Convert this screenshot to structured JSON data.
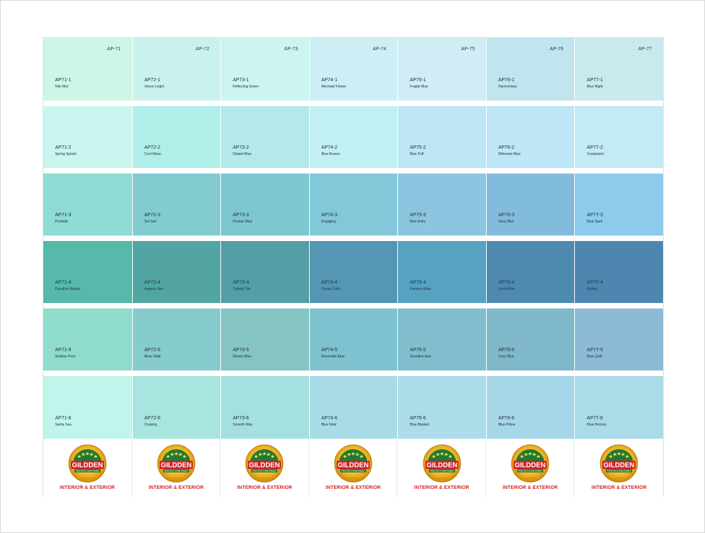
{
  "brand": {
    "logo_text": "GILDDEN",
    "logo_subtext": "PROTECTION PAINT",
    "tagline": "INTERIOR & EXTERIOR"
  },
  "columns": [
    {
      "header": "AP-71",
      "swatches": [
        {
          "code": "AP71-1",
          "name": "Nile Mist",
          "color": "#cdf6e6"
        },
        {
          "code": "AP71-2",
          "name": "Spring Splash",
          "color": "#c9f7f0"
        },
        {
          "code": "AP71-3",
          "name": "Poolside",
          "color": "#8edcd3"
        },
        {
          "code": "AP71-4",
          "name": "Paradise Waters",
          "color": "#56b9a9"
        },
        {
          "code": "AP71-5",
          "name": "Shallow Pool",
          "color": "#8fdccd"
        },
        {
          "code": "AP71-6",
          "name": "Sarba Sea",
          "color": "#bff5ea"
        }
      ]
    },
    {
      "header": "AP-72",
      "swatches": [
        {
          "code": "AP72-1",
          "name": "Venus Linght",
          "color": "#c9f2ee"
        },
        {
          "code": "AP72-2",
          "name": "Cool Wave",
          "color": "#b0efe9"
        },
        {
          "code": "AP72-3",
          "name": "Set Sail",
          "color": "#82ccd0"
        },
        {
          "code": "AP72-4",
          "name": "Aegean Sea",
          "color": "#52a5a2"
        },
        {
          "code": "AP72-5",
          "name": "River Walk",
          "color": "#86cccc"
        },
        {
          "code": "AP72-6",
          "name": "Cruising",
          "color": "#a8e4e0"
        }
      ]
    },
    {
      "header": "AP-73",
      "swatches": [
        {
          "code": "AP73-1",
          "name": "Reflecting Green",
          "color": "#ccf5ef"
        },
        {
          "code": "AP73-2",
          "name": "Distant Blue",
          "color": "#b3e9e8"
        },
        {
          "code": "AP73-3",
          "name": "Persian Blue",
          "color": "#7dc7cf"
        },
        {
          "code": "AP73-4",
          "name": "Turkish Tile",
          "color": "#549ea6"
        },
        {
          "code": "AP73-5",
          "name": "Woven Blue",
          "color": "#86c4c4"
        },
        {
          "code": "AP73-6",
          "name": "Smooth Way",
          "color": "#a5e0e0"
        }
      ]
    },
    {
      "header": "AP-74",
      "swatches": [
        {
          "code": "AP74-1",
          "name": "Mermaid Flower",
          "color": "#cdeef5"
        },
        {
          "code": "AP74-2",
          "name": "Blue Breeze",
          "color": "#c2f0f2"
        },
        {
          "code": "AP74-3",
          "name": "Engaging",
          "color": "#82c8d8"
        },
        {
          "code": "AP74-4",
          "name": "Ocean Calm",
          "color": "#5496b3"
        },
        {
          "code": "AP74-5",
          "name": "Reverside Blue",
          "color": "#7ec2cf"
        },
        {
          "code": "AP74-6",
          "name": "Blue Note",
          "color": "#a7dce6"
        }
      ]
    },
    {
      "header": "AP-75",
      "swatches": [
        {
          "code": "AP75-1",
          "name": "Fragile Blue",
          "color": "#d0edf6"
        },
        {
          "code": "AP75-2",
          "name": "Blue Puff",
          "color": "#bde7f6"
        },
        {
          "code": "AP75-3",
          "name": "Blue Entry",
          "color": "#8bc5e0"
        },
        {
          "code": "AP75-4",
          "name": "Florence Blue",
          "color": "#56a2c1"
        },
        {
          "code": "AP75-5",
          "name": "Sensitive blue",
          "color": "#82bdcd"
        },
        {
          "code": "AP75-6",
          "name": "Blue Blanket",
          "color": "#acdcea"
        }
      ]
    },
    {
      "header": "AP-76",
      "swatches": [
        {
          "code": "AP76-1",
          "name": "Harmonious",
          "color": "#c0e5ef"
        },
        {
          "code": "AP76-2",
          "name": "Winsome Blue",
          "color": "#bde6f6"
        },
        {
          "code": "AP76-3",
          "name": "Story Blue",
          "color": "#82bcdc"
        },
        {
          "code": "AP76-4",
          "name": "Fresh Blue",
          "color": "#4e8ab0"
        },
        {
          "code": "AP76-5",
          "name": "Cozy Blue",
          "color": "#7fb8c9"
        },
        {
          "code": "AP76-6",
          "name": "Blue Pillow",
          "color": "#a6d7e8"
        }
      ]
    },
    {
      "header": "AP-77",
      "swatches": [
        {
          "code": "AP77-1",
          "name": "Blue Night",
          "color": "#c8e9ee"
        },
        {
          "code": "AP77-2",
          "name": "Composed",
          "color": "#c3eaf7"
        },
        {
          "code": "AP77-3",
          "name": "Blue Spell",
          "color": "#8ccbeb"
        },
        {
          "code": "AP77-4",
          "name": "Elation",
          "color": "#4e86b0"
        },
        {
          "code": "AP77-5",
          "name": "Blue Quilt",
          "color": "#8dbad4"
        },
        {
          "code": "AP77-6",
          "name": "Blue Horizon",
          "color": "#a9dbe8"
        }
      ]
    }
  ]
}
